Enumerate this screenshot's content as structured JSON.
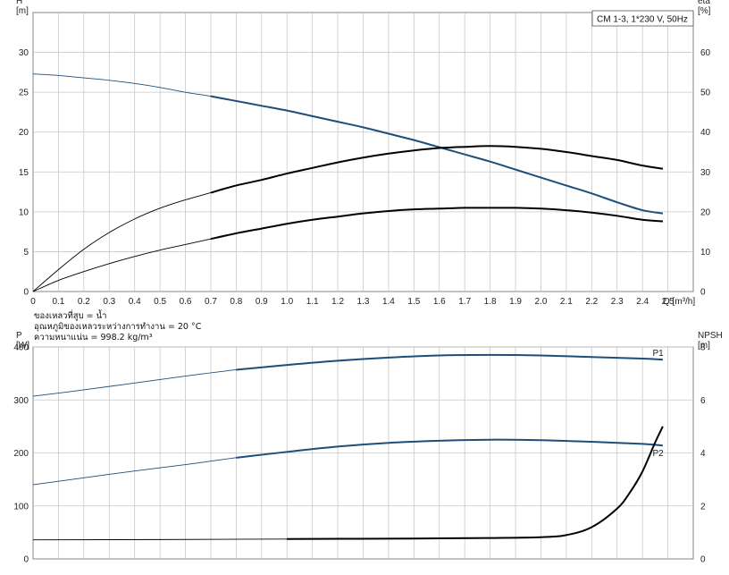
{
  "legend_box": "CM 1-3, 1*230 V, 50Hz",
  "notes": [
    "ของเหลวที่สูบ = น้ำ",
    "อุณหภูมิของเหลวระหว่างการทำงาน = 20 °C",
    "ความหนาแน่น = 998.2 kg/m³"
  ],
  "chart_data": [
    {
      "type": "line",
      "xlabel": "Q [m³/h]",
      "ylabel_left": [
        "H",
        "[m]"
      ],
      "ylabel_right": [
        "eta",
        "[%]"
      ],
      "xlim": [
        0,
        2.6
      ],
      "ylim_left": [
        0,
        35
      ],
      "ylim_right": [
        0,
        70
      ],
      "xticks": [
        0,
        0.1,
        0.2,
        0.3,
        0.4,
        0.5,
        0.6,
        0.7,
        0.8,
        0.9,
        1.0,
        1.1,
        1.2,
        1.3,
        1.4,
        1.5,
        1.6,
        1.7,
        1.8,
        1.9,
        2.0,
        2.1,
        2.2,
        2.3,
        2.4,
        2.5
      ],
      "xtick_labels": [
        "0",
        "0.1",
        "0.2",
        "0.3",
        "0.4",
        "0.5",
        "0.6",
        "0.7",
        "0.8",
        "0.9",
        "1.0",
        "1.1",
        "1.2",
        "1.3",
        "1.4",
        "1.5",
        "1.6",
        "1.7",
        "1.8",
        "1.9",
        "2.0",
        "2.1",
        "2.2",
        "2.3",
        "2.4",
        "2.5"
      ],
      "yticks_left": [
        0,
        5,
        10,
        15,
        20,
        25,
        30
      ],
      "yticks_right": [
        0,
        10,
        20,
        30,
        40,
        50,
        60
      ],
      "grid": true,
      "duty_range_start": 0.69,
      "series": [
        {
          "axis": "left",
          "color": "#1f4e79",
          "x": [
            0,
            0.1,
            0.2,
            0.3,
            0.4,
            0.5,
            0.6,
            0.7,
            0.8,
            0.9,
            1.0,
            1.1,
            1.2,
            1.3,
            1.4,
            1.5,
            1.6,
            1.7,
            1.8,
            1.9,
            2.0,
            2.1,
            2.2,
            2.3,
            2.4,
            2.48
          ],
          "values": [
            27.3,
            27.1,
            26.8,
            26.5,
            26.1,
            25.6,
            25.0,
            24.5,
            23.9,
            23.3,
            22.7,
            22.0,
            21.3,
            20.6,
            19.8,
            19.0,
            18.1,
            17.2,
            16.3,
            15.3,
            14.3,
            13.3,
            12.3,
            11.2,
            10.2,
            9.8
          ]
        },
        {
          "axis": "right",
          "color": "#000000",
          "x": [
            0,
            0.1,
            0.2,
            0.3,
            0.4,
            0.5,
            0.6,
            0.7,
            0.8,
            0.9,
            1.0,
            1.1,
            1.2,
            1.3,
            1.4,
            1.5,
            1.6,
            1.7,
            1.8,
            1.9,
            2.0,
            2.1,
            2.2,
            2.3,
            2.4,
            2.48
          ],
          "values": [
            0,
            5.5,
            10.6,
            14.8,
            18.2,
            20.9,
            23.0,
            24.8,
            26.6,
            28.0,
            29.6,
            31.0,
            32.4,
            33.6,
            34.6,
            35.4,
            36.0,
            36.3,
            36.5,
            36.3,
            35.8,
            35.0,
            34.0,
            33.0,
            31.6,
            30.8
          ]
        },
        {
          "axis": "left",
          "color": "#000000",
          "x": [
            0,
            0.1,
            0.2,
            0.3,
            0.4,
            0.5,
            0.6,
            0.7,
            0.8,
            0.9,
            1.0,
            1.1,
            1.2,
            1.3,
            1.4,
            1.5,
            1.6,
            1.7,
            1.8,
            1.9,
            2.0,
            2.1,
            2.2,
            2.3,
            2.4,
            2.48
          ],
          "values": [
            0,
            1.4,
            2.5,
            3.5,
            4.4,
            5.2,
            5.9,
            6.6,
            7.3,
            7.9,
            8.5,
            9.0,
            9.4,
            9.8,
            10.1,
            10.3,
            10.4,
            10.5,
            10.5,
            10.5,
            10.4,
            10.2,
            9.9,
            9.5,
            9.0,
            8.8
          ]
        }
      ]
    },
    {
      "type": "line",
      "ylabel_left": [
        "P",
        "[W]"
      ],
      "ylabel_right": [
        "NPSH",
        "[m]"
      ],
      "xlim": [
        0,
        2.6
      ],
      "ylim_left": [
        0,
        400
      ],
      "ylim_right": [
        0,
        8
      ],
      "yticks_left": [
        0,
        100,
        200,
        300,
        400
      ],
      "yticks_right": [
        0,
        2,
        4,
        6,
        8
      ],
      "grid": true,
      "series": [
        {
          "name": "P1",
          "axis": "left",
          "color": "#1f4e79",
          "x": [
            0,
            0.2,
            0.4,
            0.6,
            0.8,
            1.0,
            1.2,
            1.4,
            1.6,
            1.8,
            2.0,
            2.2,
            2.4,
            2.48
          ],
          "values": [
            307,
            319,
            332,
            345,
            357,
            366,
            374,
            380,
            384,
            385,
            384,
            381,
            378,
            376
          ]
        },
        {
          "name": "P2",
          "axis": "left",
          "color": "#1f4e79",
          "x": [
            0,
            0.2,
            0.4,
            0.6,
            0.8,
            1.0,
            1.2,
            1.4,
            1.6,
            1.8,
            2.0,
            2.2,
            2.4,
            2.48
          ],
          "values": [
            140,
            153,
            166,
            178,
            191,
            202,
            212,
            219,
            223,
            225,
            224,
            221,
            217,
            214
          ]
        },
        {
          "name": "NPSH",
          "axis": "right",
          "color": "#000000",
          "x": [
            0,
            0.5,
            1.0,
            1.5,
            1.8,
            2.0,
            2.1,
            2.2,
            2.3,
            2.35,
            2.4,
            2.45,
            2.48
          ],
          "values": [
            0.72,
            0.73,
            0.75,
            0.77,
            0.79,
            0.82,
            0.9,
            1.2,
            1.9,
            2.5,
            3.3,
            4.4,
            5.0
          ]
        }
      ]
    }
  ]
}
